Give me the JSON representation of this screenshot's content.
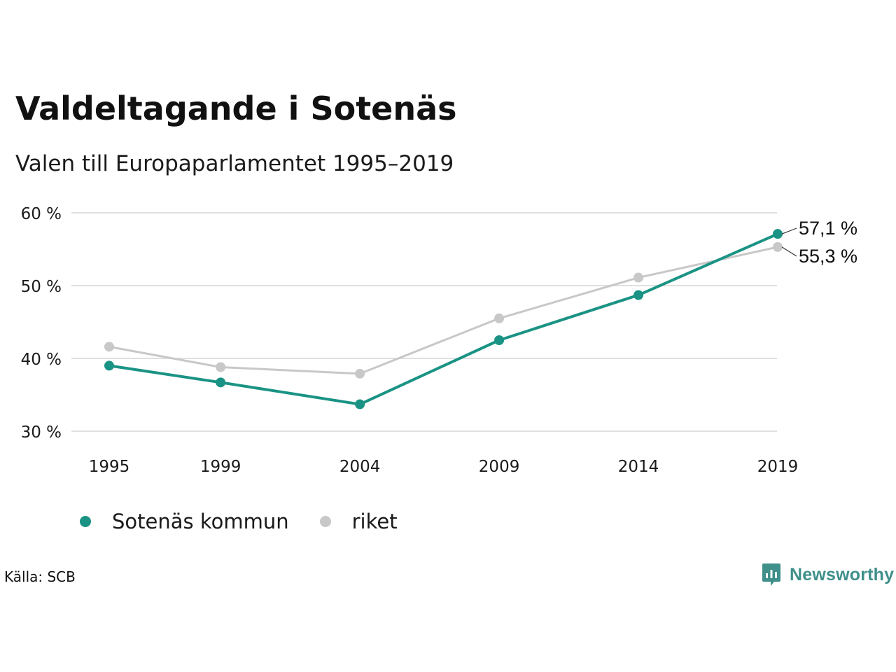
{
  "title": "Valdeltagande i Sotenäs",
  "subtitle": "Valen till Europaparlamentet 1995–2019",
  "source": "Källa: SCB",
  "brand": "Newsworthy",
  "colors": {
    "sotenas": "#1a9384",
    "riket": "#c8c8c8",
    "grid": "#e0e0e0",
    "brand": "#3f8f8a"
  },
  "chart_data": {
    "type": "line",
    "title": "Valdeltagande i Sotenäs",
    "subtitle": "Valen till Europaparlamentet 1995–2019",
    "categories": [
      "1995",
      "1999",
      "2004",
      "2009",
      "2014",
      "2019"
    ],
    "x_numeric": [
      1995,
      1999,
      2004,
      2009,
      2014,
      2019
    ],
    "y_ticks": [
      30,
      40,
      50,
      60
    ],
    "y_tick_labels": [
      "30 %",
      "40 %",
      "50 %",
      "60 %"
    ],
    "ylim": [
      30,
      60
    ],
    "grid": true,
    "legend_position": "bottom-left",
    "series": [
      {
        "name": "riket",
        "color": "#c8c8c8",
        "values": [
          41.6,
          38.8,
          37.9,
          45.5,
          51.1,
          55.3
        ],
        "end_label": "55,3 %"
      },
      {
        "name": "Sotenäs kommun",
        "color": "#1a9384",
        "values": [
          39.0,
          36.7,
          33.7,
          42.5,
          48.7,
          57.1
        ],
        "end_label": "57,1 %"
      }
    ]
  },
  "legend": {
    "items": [
      {
        "label": "Sotenäs kommun",
        "color": "#1a9384"
      },
      {
        "label": "riket",
        "color": "#c8c8c8"
      }
    ]
  }
}
